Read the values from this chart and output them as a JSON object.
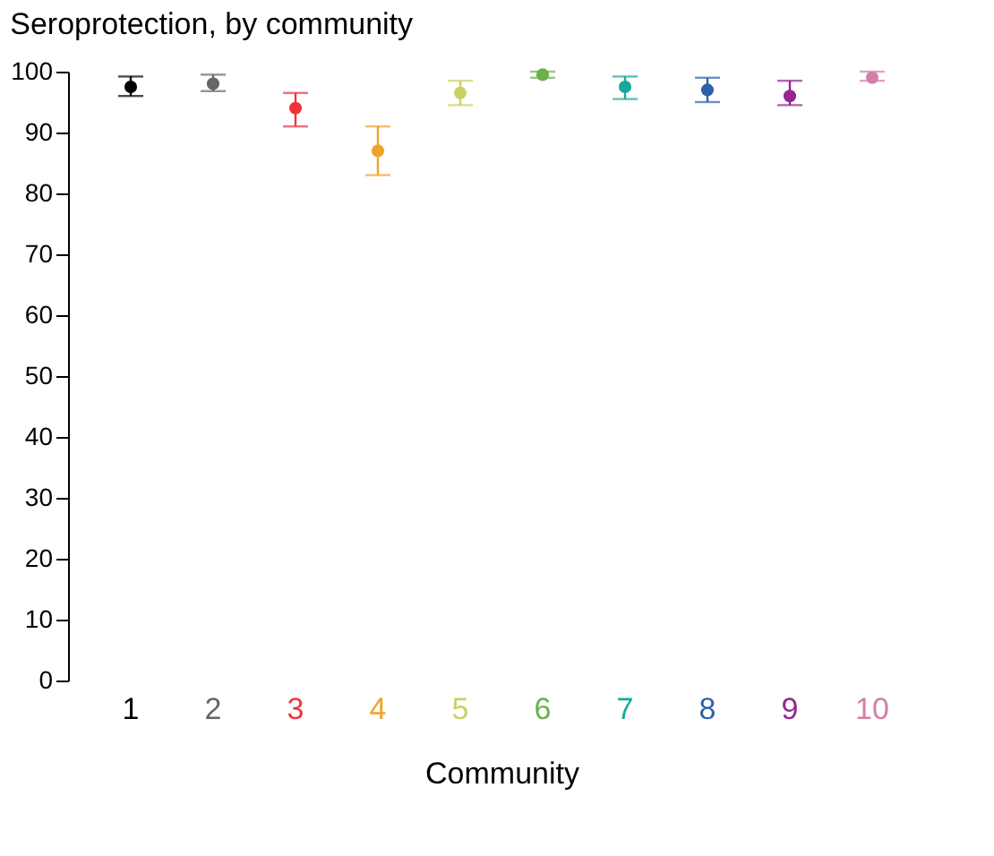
{
  "chart_data": {
    "type": "scatter",
    "title": "Seroprotection, by community",
    "xlabel": "Community",
    "categories": [
      "1",
      "2",
      "3",
      "4",
      "5",
      "6",
      "7",
      "8",
      "9",
      "10"
    ],
    "values": [
      97.5,
      98,
      94,
      87,
      96.5,
      99.5,
      97.5,
      97,
      96,
      99
    ],
    "errors": [
      [
        96,
        99.2
      ],
      [
        96.8,
        99.5
      ],
      [
        91,
        96.5
      ],
      [
        83,
        91
      ],
      [
        94.5,
        98.5
      ],
      [
        99,
        100
      ],
      [
        95.5,
        99.2
      ],
      [
        95,
        99
      ],
      [
        94.5,
        98.5
      ],
      [
        98.5,
        100
      ]
    ],
    "colors": [
      "#000000",
      "#666666",
      "#f0333a",
      "#f0a32a",
      "#ccd064",
      "#6ab04c",
      "#17a99a",
      "#2e62a8",
      "#962690",
      "#d37fab"
    ],
    "ylim": [
      0,
      100
    ],
    "yticks": [
      0,
      10,
      20,
      30,
      40,
      50,
      60,
      70,
      80,
      90,
      100
    ],
    "grid": false,
    "legend": false,
    "marker": "circle"
  }
}
